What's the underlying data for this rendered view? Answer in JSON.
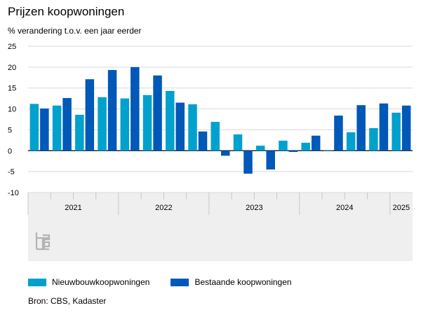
{
  "chart_data": {
    "type": "bar",
    "title": "Prijzen koopwoningen",
    "ylabel": "% verandering t.o.v. een jaar eerder",
    "ylim": [
      -10,
      25
    ],
    "yticks": [
      25,
      20,
      15,
      10,
      5,
      0,
      -5,
      -10
    ],
    "grid": true,
    "legend_position": "bottom",
    "categories": [
      "2021 K1",
      "2021 K2",
      "2021 K3",
      "2021 K4",
      "2022 K1",
      "2022 K2",
      "2022 K3",
      "2022 K4",
      "2023 K1",
      "2023 K2",
      "2023 K3",
      "2023 K4",
      "2024 K1",
      "2024 K2",
      "2024 K3",
      "2024 K4",
      "2025 K1"
    ],
    "years": [
      {
        "label": "2021",
        "quarters": 4
      },
      {
        "label": "2022",
        "quarters": 4
      },
      {
        "label": "2023",
        "quarters": 4
      },
      {
        "label": "2024",
        "quarters": 4
      },
      {
        "label": "2025",
        "quarters": 1
      }
    ],
    "series": [
      {
        "name": "Nieuwbouwkoopwoningen",
        "color": "#00a1cd",
        "values": [
          11.2,
          10.8,
          8.6,
          12.8,
          12.5,
          13.3,
          14.3,
          11.1,
          6.9,
          3.9,
          1.2,
          2.4,
          1.9,
          0.1,
          4.4,
          5.4,
          9.1
        ]
      },
      {
        "name": "Bestaande koopwoningen",
        "color": "#0058b8",
        "values": [
          10.1,
          12.6,
          17.1,
          19.3,
          20.0,
          18.0,
          11.5,
          4.6,
          -1.2,
          -5.5,
          -4.5,
          -0.3,
          3.6,
          8.4,
          10.9,
          11.3,
          10.8
        ]
      }
    ]
  },
  "footer": {
    "source": "Bron: CBS, Kadaster"
  },
  "colors": {
    "panel_background": "#efefef",
    "grid": "#d9d9d9",
    "separator": "#c8c8c8"
  },
  "icons": {
    "logo": "cbs-logo"
  }
}
